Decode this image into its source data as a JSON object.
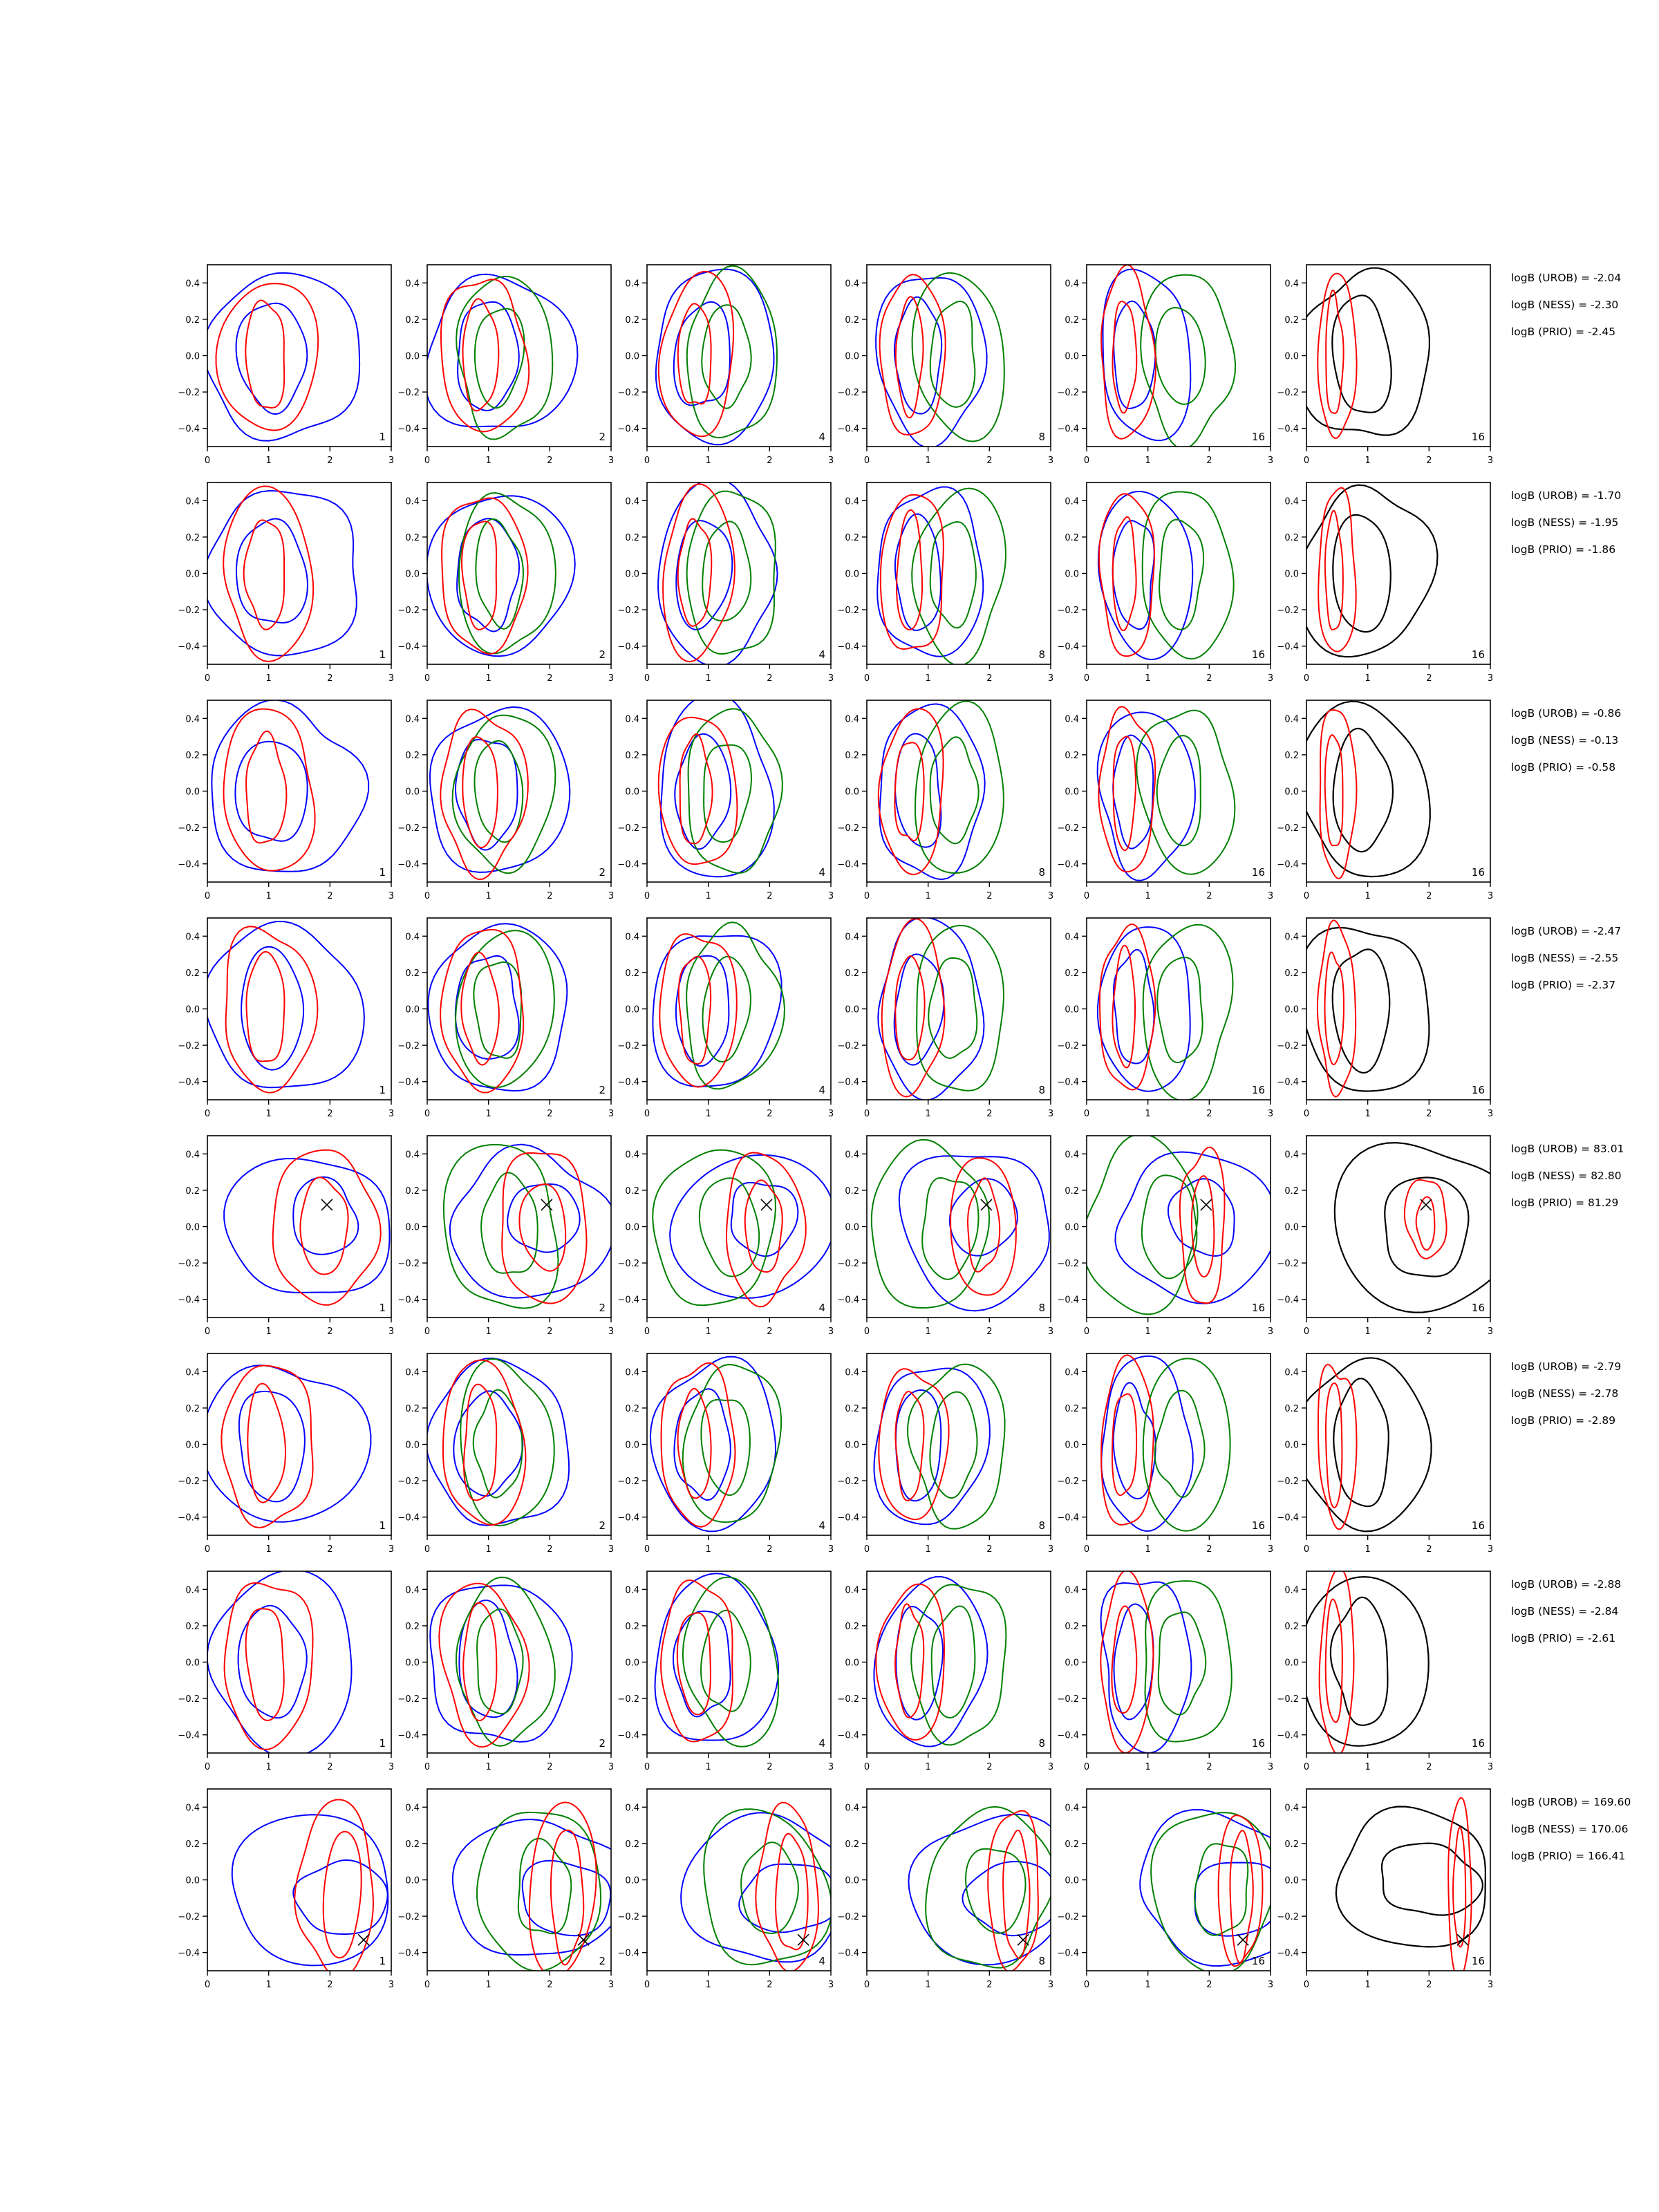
{
  "chart_data": {
    "type": "contour",
    "grid": {
      "rows": 8,
      "cols": 6
    },
    "xlim": [
      0,
      3
    ],
    "ylim": [
      -0.5,
      0.5
    ],
    "xticks": [
      "0",
      "1",
      "2",
      "3"
    ],
    "yticks": [
      "0.4",
      "0.2",
      "0.0",
      "−0.2",
      "−0.4"
    ],
    "yticks_values": [
      0.4,
      0.2,
      0.0,
      -0.2,
      -0.4
    ],
    "col_labels": [
      "1",
      "2",
      "4",
      "8",
      "16",
      "16"
    ],
    "colors": {
      "blue": "#0000ff",
      "red": "#ff0000",
      "green": "#008000",
      "black": "#000000"
    },
    "rows": [
      {
        "logB": [
          "logB (UROB) = -2.04",
          "logB (NESS) = -2.30",
          "logB (PRIO) = -2.45"
        ],
        "marker": null,
        "style": "left"
      },
      {
        "logB": [
          "logB (UROB) = -1.70",
          "logB (NESS) = -1.95",
          "logB (PRIO) = -1.86"
        ],
        "marker": null,
        "style": "left"
      },
      {
        "logB": [
          "logB (UROB) = -0.86",
          "logB (NESS) = -0.13",
          "logB (PRIO) = -0.58"
        ],
        "marker": null,
        "style": "left"
      },
      {
        "logB": [
          "logB (UROB) = -2.47",
          "logB (NESS) = -2.55",
          "logB (PRIO) = -2.37"
        ],
        "marker": null,
        "style": "left"
      },
      {
        "logB": [
          "logB (UROB) = 83.01",
          "logB (NESS) = 82.80",
          "logB (PRIO) = 81.29"
        ],
        "marker": [
          1.95,
          0.12
        ],
        "style": "center"
      },
      {
        "logB": [
          "logB (UROB) = -2.79",
          "logB (NESS) = -2.78",
          "logB (PRIO) = -2.89"
        ],
        "marker": null,
        "style": "left"
      },
      {
        "logB": [
          "logB (UROB) = -2.88",
          "logB (NESS) = -2.84",
          "logB (PRIO) = -2.61"
        ],
        "marker": null,
        "style": "left"
      },
      {
        "logB": [
          "logB (UROB) = 169.60",
          "logB (NESS) = 170.06",
          "logB (PRIO) = 166.41"
        ],
        "marker": [
          2.55,
          -0.33
        ],
        "style": "right"
      }
    ]
  }
}
